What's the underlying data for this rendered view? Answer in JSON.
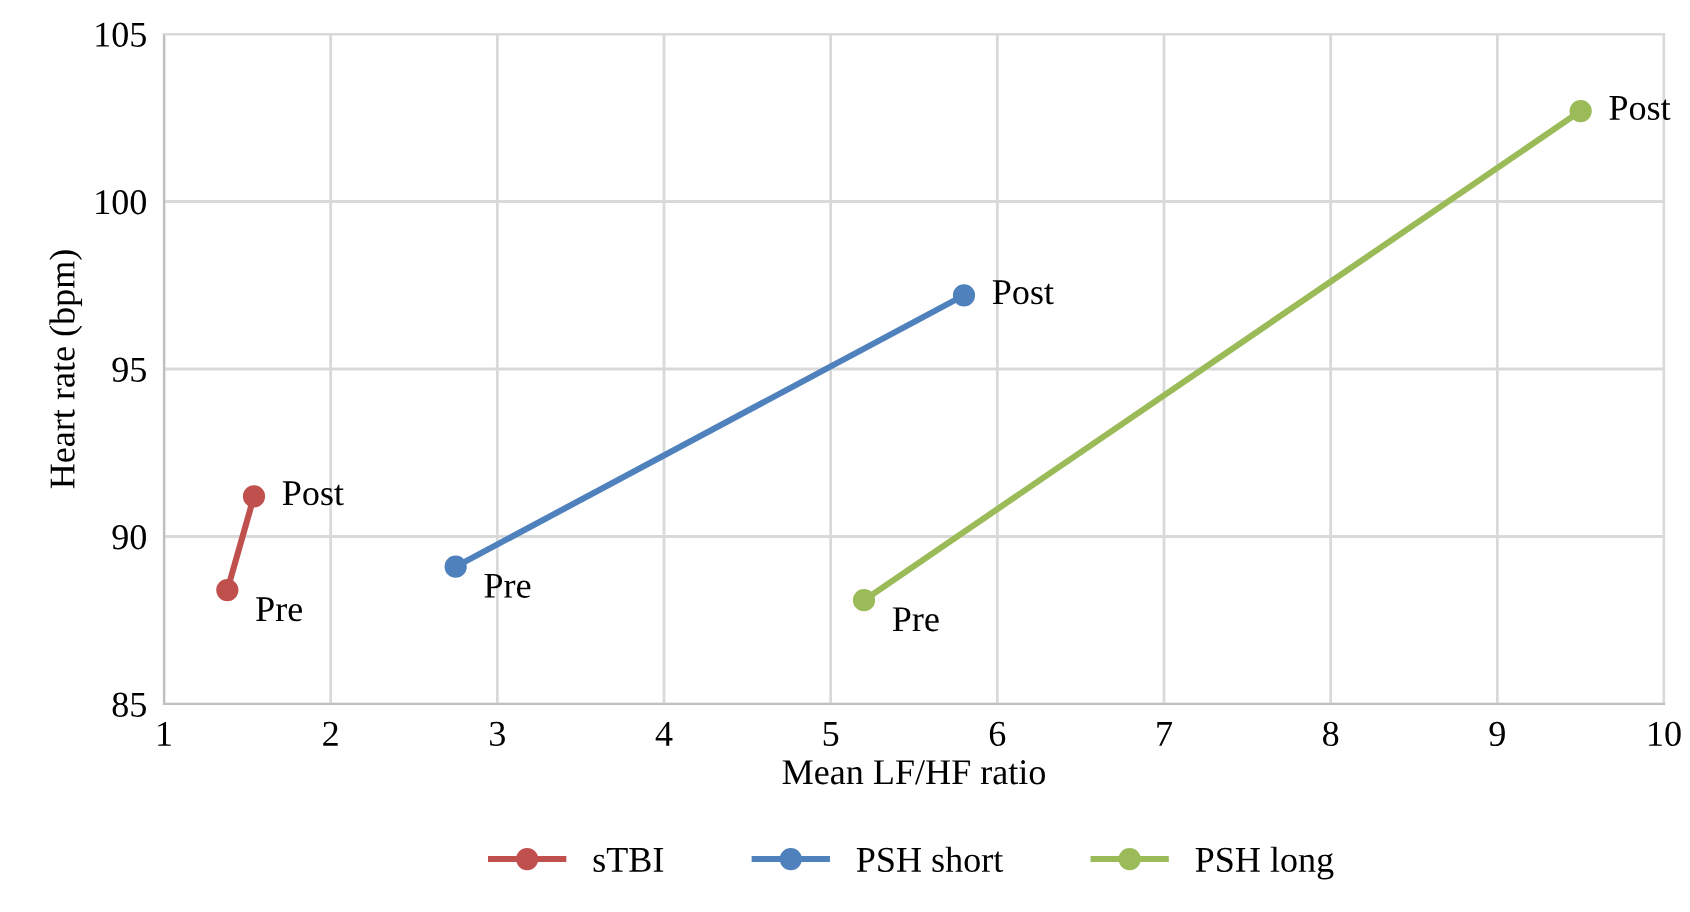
{
  "chart_data": {
    "type": "line",
    "xlabel": "Mean LF/HF ratio",
    "ylabel": "Heart rate (bpm)",
    "xlim": [
      1,
      10
    ],
    "xticks": [
      1,
      2,
      3,
      4,
      5,
      6,
      7,
      8,
      9,
      10
    ],
    "ylim": [
      85,
      105
    ],
    "yticks": [
      85,
      90,
      95,
      100,
      105
    ],
    "grid": true,
    "legend": "bottom",
    "marker": "circle",
    "line_style": "solid",
    "series": [
      {
        "name": "sTBI",
        "color": "#c0504d",
        "x": [
          1.38,
          1.54
        ],
        "values": [
          88.4,
          91.2
        ]
      },
      {
        "name": "PSH short",
        "color": "#4f81bd",
        "x": [
          2.75,
          5.8
        ],
        "values": [
          89.1,
          97.2
        ]
      },
      {
        "name": "PSH long",
        "color": "#9bbb59",
        "x": [
          5.2,
          9.5
        ],
        "values": [
          88.1,
          102.7
        ]
      }
    ],
    "annotations": [
      {
        "text": "Pre",
        "x": 1.38,
        "y": 88.4
      },
      {
        "text": "Post",
        "x": 1.54,
        "y": 91.2
      },
      {
        "text": "Pre",
        "x": 2.75,
        "y": 89.1
      },
      {
        "text": "Post",
        "x": 5.8,
        "y": 97.2
      },
      {
        "text": "Pre",
        "x": 5.2,
        "y": 88.1
      },
      {
        "text": "Post",
        "x": 9.5,
        "y": 102.7
      }
    ]
  }
}
